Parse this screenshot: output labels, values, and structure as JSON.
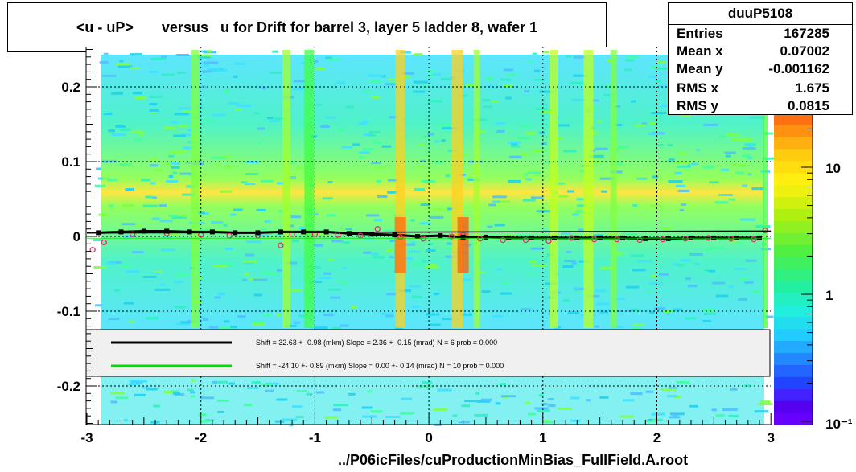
{
  "chart_data": {
    "type": "heatmap",
    "title": "<u - uP>       versus   u for Drift for barrel 3, layer 5 ladder 8, wafer 1",
    "xlabel": "../P06icFiles/cuProductionMinBias_FullField.A.root",
    "ylabel": "",
    "xlim": [
      -3,
      3
    ],
    "ylim": [
      -0.25,
      0.25
    ],
    "x_ticks": [
      "-3",
      "-2",
      "-1",
      "0",
      "1",
      "2",
      "3"
    ],
    "y_ticks": [
      "0.2",
      "0.1",
      "0",
      "-0.1",
      "-0.2"
    ],
    "colorbar_ticks": [
      "10",
      "1",
      "10⁻¹"
    ],
    "colorbar_scale": "log",
    "grid": true,
    "stats": {
      "name": "duuP5108",
      "rows": [
        {
          "label": "Entries",
          "value": "167285"
        },
        {
          "label": "Mean x",
          "value": "0.07002"
        },
        {
          "label": "Mean y",
          "value": "-0.001162"
        },
        {
          "label": "RMS x",
          "value": "1.675"
        },
        {
          "label": "RMS y",
          "value": "0.0815"
        }
      ]
    },
    "fits": [
      {
        "color": "#000000",
        "text": "Shift =    32.63 +- 0.98 (mkm) Slope =     2.36 +- 0.15 (mrad)  N = 6 prob = 0.000"
      },
      {
        "color": "#00dd00",
        "text": "Shift =   -24.10 +- 0.89 (mkm) Slope =     0.00 +- 0.14 (mrad)  N = 10 prob = 0.000"
      }
    ],
    "profile_black": {
      "x": [
        -2.9,
        -2.7,
        -2.5,
        -2.3,
        -2.1,
        -1.9,
        -1.7,
        -1.5,
        -1.3,
        -1.1,
        -0.9,
        -0.7,
        -0.5,
        -0.3,
        -0.1,
        0.1,
        0.3,
        0.5,
        0.7,
        0.9,
        1.1,
        1.3,
        1.5,
        1.7,
        1.9,
        2.1,
        2.3,
        2.5,
        2.7,
        2.9
      ],
      "y": [
        0.005,
        0.006,
        0.007,
        0.007,
        0.006,
        0.006,
        0.005,
        0.005,
        0.006,
        0.006,
        0.006,
        0.004,
        0.003,
        0.002,
        0.0,
        0.001,
        -0.001,
        -0.001,
        -0.002,
        -0.002,
        -0.002,
        -0.002,
        -0.002,
        -0.002,
        -0.003,
        -0.003,
        -0.002,
        -0.002,
        -0.002,
        -0.002
      ]
    },
    "profile_red": {
      "x": [
        -2.95,
        -2.85,
        -2.6,
        -2.3,
        -2.0,
        -1.75,
        -1.5,
        -1.3,
        -1.2,
        -1.0,
        -0.8,
        -0.6,
        -0.45,
        -0.25,
        -0.05,
        0.2,
        0.3,
        0.45,
        0.65,
        0.85,
        1.05,
        1.25,
        1.45,
        1.65,
        1.85,
        2.05,
        2.25,
        2.45,
        2.65,
        2.85,
        2.95
      ],
      "y": [
        -0.018,
        -0.008,
        0.003,
        0.004,
        0.002,
        0.001,
        0.001,
        -0.012,
        0.003,
        0.003,
        0.002,
        0.001,
        0.01,
        -0.001,
        -0.003,
        0.0,
        0.002,
        -0.003,
        -0.005,
        -0.005,
        -0.006,
        -0.002,
        -0.004,
        -0.004,
        -0.005,
        -0.004,
        -0.003,
        -0.002,
        -0.003,
        -0.004,
        0.008
      ]
    }
  }
}
